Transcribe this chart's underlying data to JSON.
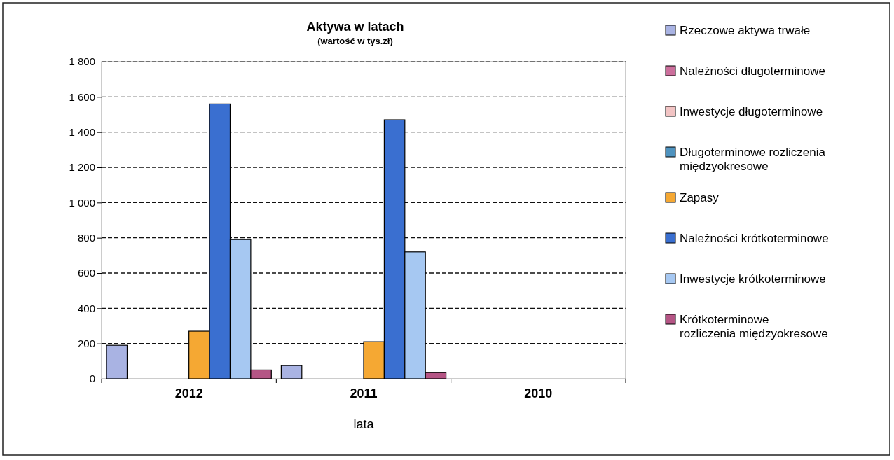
{
  "chart_data": {
    "type": "bar",
    "title": "Aktywa w latach",
    "subtitle": "(wartość w tys.zł)",
    "xlabel": "lata",
    "categories": [
      "2012",
      "2011",
      "2010"
    ],
    "series": [
      {
        "name": "Rzeczowe aktywa trwałe",
        "color": "#a9b3e3",
        "values": [
          190,
          75,
          0
        ]
      },
      {
        "name": "Należności długoterminowe",
        "color": "#cc6f9c",
        "values": [
          0,
          0,
          0
        ]
      },
      {
        "name": "Inwestycje długoterminowe",
        "color": "#f2c4c4",
        "values": [
          0,
          0,
          0
        ]
      },
      {
        "name": "Długoterminowe rozliczenia międzyokresowe",
        "color": "#4f93bf",
        "values": [
          0,
          0,
          0
        ]
      },
      {
        "name": "Zapasy",
        "color": "#f5a833",
        "values": [
          270,
          210,
          0
        ]
      },
      {
        "name": "Należności krótkoterminowe",
        "color": "#3a6fd0",
        "values": [
          1560,
          1470,
          0
        ]
      },
      {
        "name": "Inwestycje krótkoterminowe",
        "color": "#a6c8f2",
        "values": [
          790,
          720,
          0
        ]
      },
      {
        "name": "Krótkoterminowe rozliczenia międzyokresowe",
        "color": "#b55585",
        "values": [
          50,
          35,
          0
        ]
      }
    ],
    "ylim": [
      0,
      1800
    ],
    "yticks": [
      0,
      200,
      400,
      600,
      800,
      {
        "value": 1000,
        "label": "1 000"
      },
      {
        "value": 1200,
        "label": "1 200"
      },
      {
        "value": 1400,
        "label": "1 400"
      },
      {
        "value": 1600,
        "label": "1 600"
      },
      {
        "value": 1800,
        "label": "1 800"
      }
    ],
    "grid": "y",
    "legend": "right"
  }
}
